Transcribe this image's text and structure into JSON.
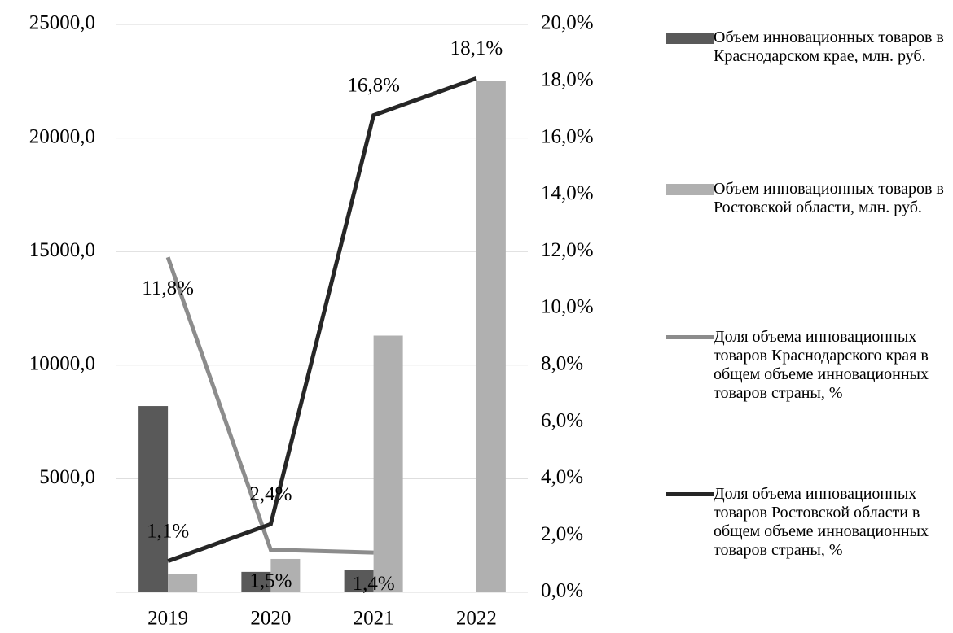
{
  "chart_data": {
    "type": "bar-line",
    "categories": [
      "2019",
      "2020",
      "2021",
      "2022"
    ],
    "series": [
      {
        "name": "Объем инновационных товаров в Краснодарском крае, млн. руб.",
        "type": "bar",
        "color": "#595959",
        "values": [
          8200,
          900,
          1000,
          null
        ]
      },
      {
        "name": "Объем инновационных товаров в Ростовской области, млн. руб.",
        "type": "bar",
        "color": "#b0b0b0",
        "values": [
          820,
          1470,
          11300,
          22500
        ]
      },
      {
        "name": "Доля объема инновационных товаров Краснодарского края в общем объеме инновационных товаров страны, %",
        "type": "line",
        "axis": "y2",
        "color": "#8c8c8c",
        "values": [
          11.8,
          1.5,
          1.4,
          null
        ],
        "value_labels": [
          "11,8%",
          "1,5%",
          "1,4%",
          null
        ]
      },
      {
        "name": "Доля объема инновационных товаров Ростовской области в общем объеме инновационных товаров страны, %",
        "type": "line",
        "axis": "y2",
        "color": "#262626",
        "values": [
          1.1,
          2.4,
          16.8,
          18.1
        ],
        "value_labels": [
          "1,1%",
          "2,4%",
          "16,8%",
          "18,1%"
        ]
      }
    ],
    "ylim": [
      0,
      25000
    ],
    "yticks": [
      {
        "value": 5000,
        "label": "5000,0"
      },
      {
        "value": 10000,
        "label": "10000,0"
      },
      {
        "value": 15000,
        "label": "15000,0"
      },
      {
        "value": 20000,
        "label": "20000,0"
      },
      {
        "value": 25000,
        "label": "25000,0"
      }
    ],
    "y2lim": [
      0,
      20
    ],
    "y2ticks": [
      {
        "value": 0,
        "label": "0,0%"
      },
      {
        "value": 2,
        "label": "2,0%"
      },
      {
        "value": 4,
        "label": "4,0%"
      },
      {
        "value": 6,
        "label": "6,0%"
      },
      {
        "value": 8,
        "label": "8,0%"
      },
      {
        "value": 10,
        "label": "10,0%"
      },
      {
        "value": 12,
        "label": "12,0%"
      },
      {
        "value": 14,
        "label": "14,0%"
      },
      {
        "value": 16,
        "label": "16,0%"
      },
      {
        "value": 18,
        "label": "18,0%"
      },
      {
        "value": 20,
        "label": "20,0%"
      }
    ],
    "grid": true,
    "legend": "right"
  }
}
